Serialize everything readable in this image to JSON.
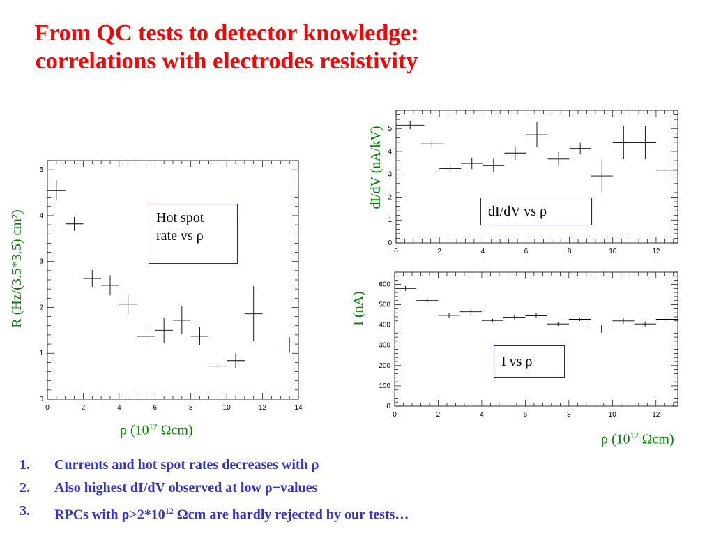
{
  "title": "From QC tests to detector knowledge: correlations with electrodes resistivity",
  "chart_data": [
    {
      "type": "scatter",
      "name": "hotspot",
      "ylabel": "R (Hz/(3.5*3.5) cm²)",
      "xlabel": "ρ (10¹² Ωcm)",
      "xlim": [
        0,
        14
      ],
      "ylim": [
        0,
        5.2
      ],
      "xticks": [
        0,
        2,
        4,
        6,
        8,
        10,
        12,
        14
      ],
      "yticks": [
        0,
        1,
        2,
        3,
        4,
        5
      ],
      "legend_text": [
        "Hot spot",
        "rate vs ρ"
      ],
      "points": [
        {
          "x": 0.5,
          "y": 4.55,
          "ex": 0.5,
          "ey": 0.22
        },
        {
          "x": 1.5,
          "y": 3.82,
          "ex": 0.5,
          "ey": 0.15
        },
        {
          "x": 2.5,
          "y": 2.63,
          "ex": 0.5,
          "ey": 0.18
        },
        {
          "x": 3.5,
          "y": 2.48,
          "ex": 0.5,
          "ey": 0.22
        },
        {
          "x": 4.5,
          "y": 2.07,
          "ex": 0.5,
          "ey": 0.22
        },
        {
          "x": 5.5,
          "y": 1.37,
          "ex": 0.5,
          "ey": 0.18
        },
        {
          "x": 6.5,
          "y": 1.5,
          "ex": 0.5,
          "ey": 0.28
        },
        {
          "x": 7.5,
          "y": 1.72,
          "ex": 0.5,
          "ey": 0.3
        },
        {
          "x": 8.5,
          "y": 1.37,
          "ex": 0.5,
          "ey": 0.2
        },
        {
          "x": 9.5,
          "y": 0.72,
          "ex": 0.5,
          "ey": 0.03
        },
        {
          "x": 10.5,
          "y": 0.84,
          "ex": 0.5,
          "ey": 0.16
        },
        {
          "x": 11.5,
          "y": 1.86,
          "ex": 0.5,
          "ey": 0.6
        },
        {
          "x": 13.5,
          "y": 1.18,
          "ex": 0.5,
          "ey": 0.17
        }
      ]
    },
    {
      "type": "scatter",
      "name": "didv",
      "ylabel": "dI/dV (nA/kV)",
      "xlim": [
        0,
        13
      ],
      "ylim": [
        0,
        5.8
      ],
      "xticks": [
        0,
        2,
        4,
        6,
        8,
        10,
        12
      ],
      "yticks": [
        0,
        1,
        2,
        3,
        4,
        5
      ],
      "legend_text": "dI/dV  vs  ρ",
      "points": [
        {
          "x": 0.65,
          "y": 5.15,
          "ex": 0.65,
          "ey": 0.18
        },
        {
          "x": 1.65,
          "y": 4.33,
          "ex": 0.5,
          "ey": 0.1
        },
        {
          "x": 2.5,
          "y": 3.25,
          "ex": 0.5,
          "ey": 0.15
        },
        {
          "x": 3.5,
          "y": 3.48,
          "ex": 0.5,
          "ey": 0.25
        },
        {
          "x": 4.5,
          "y": 3.38,
          "ex": 0.5,
          "ey": 0.3
        },
        {
          "x": 5.5,
          "y": 3.93,
          "ex": 0.5,
          "ey": 0.3
        },
        {
          "x": 6.5,
          "y": 4.73,
          "ex": 0.5,
          "ey": 0.55
        },
        {
          "x": 7.5,
          "y": 3.67,
          "ex": 0.5,
          "ey": 0.3
        },
        {
          "x": 8.5,
          "y": 4.13,
          "ex": 0.5,
          "ey": 0.25
        },
        {
          "x": 9.5,
          "y": 2.93,
          "ex": 0.5,
          "ey": 0.72
        },
        {
          "x": 10.5,
          "y": 4.38,
          "ex": 0.5,
          "ey": 0.72
        },
        {
          "x": 11.5,
          "y": 4.38,
          "ex": 0.5,
          "ey": 0.72
        },
        {
          "x": 12.5,
          "y": 3.18,
          "ex": 0.5,
          "ey": 0.48
        }
      ]
    },
    {
      "type": "scatter",
      "name": "current",
      "ylabel": "I (nA)",
      "xlabel": "ρ (10¹² Ωcm)",
      "xlim": [
        0,
        13
      ],
      "ylim": [
        0,
        660
      ],
      "xticks": [
        0,
        2,
        4,
        6,
        8,
        10,
        12
      ],
      "yticks": [
        0,
        100,
        200,
        300,
        400,
        500,
        600
      ],
      "legend_text": "I  vs  ρ",
      "points": [
        {
          "x": 0.5,
          "y": 580,
          "ex": 0.5,
          "ey": 12
        },
        {
          "x": 1.5,
          "y": 520,
          "ex": 0.5,
          "ey": 10
        },
        {
          "x": 2.5,
          "y": 447,
          "ex": 0.5,
          "ey": 12
        },
        {
          "x": 3.5,
          "y": 465,
          "ex": 0.5,
          "ey": 22
        },
        {
          "x": 4.5,
          "y": 422,
          "ex": 0.5,
          "ey": 8
        },
        {
          "x": 5.5,
          "y": 438,
          "ex": 0.5,
          "ey": 10
        },
        {
          "x": 6.5,
          "y": 445,
          "ex": 0.5,
          "ey": 12
        },
        {
          "x": 7.5,
          "y": 405,
          "ex": 0.5,
          "ey": 10
        },
        {
          "x": 8.5,
          "y": 428,
          "ex": 0.5,
          "ey": 8
        },
        {
          "x": 9.5,
          "y": 380,
          "ex": 0.5,
          "ey": 18
        },
        {
          "x": 10.5,
          "y": 420,
          "ex": 0.5,
          "ey": 15
        },
        {
          "x": 11.5,
          "y": 405,
          "ex": 0.5,
          "ey": 12
        },
        {
          "x": 12.5,
          "y": 428,
          "ex": 0.5,
          "ey": 15
        }
      ]
    }
  ],
  "findings": [
    {
      "num": "1.",
      "text": "Currents and hot spot rates decreases with ρ"
    },
    {
      "num": "2.",
      "text": "Also highest dI/dV observed at low ρ−values"
    },
    {
      "num": "3.",
      "text_before": "RPCs with ρ>2*10",
      "sup": "12",
      "text_after": " Ωcm are hardly rejected by our tests…"
    }
  ],
  "xlabel_parts": {
    "before": "ρ (10",
    "sup": "12",
    "after": " Ωcm)"
  }
}
